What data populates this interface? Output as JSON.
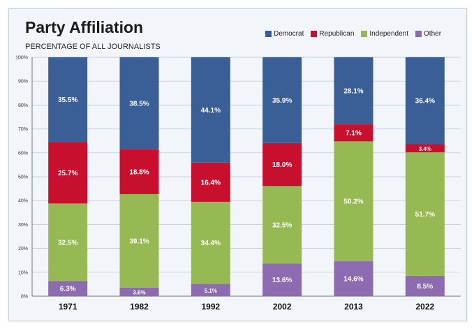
{
  "chart_data": {
    "type": "bar",
    "stacked": true,
    "title": "Party Affiliation",
    "subtitle": "PERCENTAGE OF ALL JOURNALISTS",
    "categories": [
      "1971",
      "1982",
      "1992",
      "2002",
      "2013",
      "2022"
    ],
    "ylim": [
      0,
      100
    ],
    "yticks": [
      "0%",
      "10%",
      "20%",
      "30%",
      "40%",
      "50%",
      "60%",
      "70%",
      "80%",
      "90%",
      "100%"
    ],
    "grid": true,
    "legend_position": "top-right",
    "series": [
      {
        "name": "Democrat",
        "color": "#3a5f96",
        "values": [
          35.5,
          38.5,
          44.1,
          35.9,
          28.1,
          36.4
        ],
        "labels": [
          "35.5%",
          "38.5%",
          "44.1%",
          "35.9%",
          "28.1%",
          "36.4%"
        ]
      },
      {
        "name": "Republican",
        "color": "#c8102e",
        "values": [
          25.7,
          18.8,
          16.4,
          18.0,
          7.1,
          3.4
        ],
        "labels": [
          "25.7%",
          "18.8%",
          "16.4%",
          "18.0%",
          "7.1%",
          "3.4%"
        ]
      },
      {
        "name": "Independent",
        "color": "#97b954",
        "values": [
          32.5,
          39.1,
          34.4,
          32.5,
          50.2,
          51.7
        ],
        "labels": [
          "32.5%",
          "39.1%",
          "34.4%",
          "32.5%",
          "50.2%",
          "51.7%"
        ]
      },
      {
        "name": "Other",
        "color": "#8c6bb0",
        "values": [
          6.3,
          3.6,
          5.1,
          13.6,
          14.6,
          8.5
        ],
        "labels": [
          "6.3%",
          "3.6%",
          "5.1%",
          "13.6%",
          "14.6%",
          "8.5%"
        ]
      }
    ]
  }
}
